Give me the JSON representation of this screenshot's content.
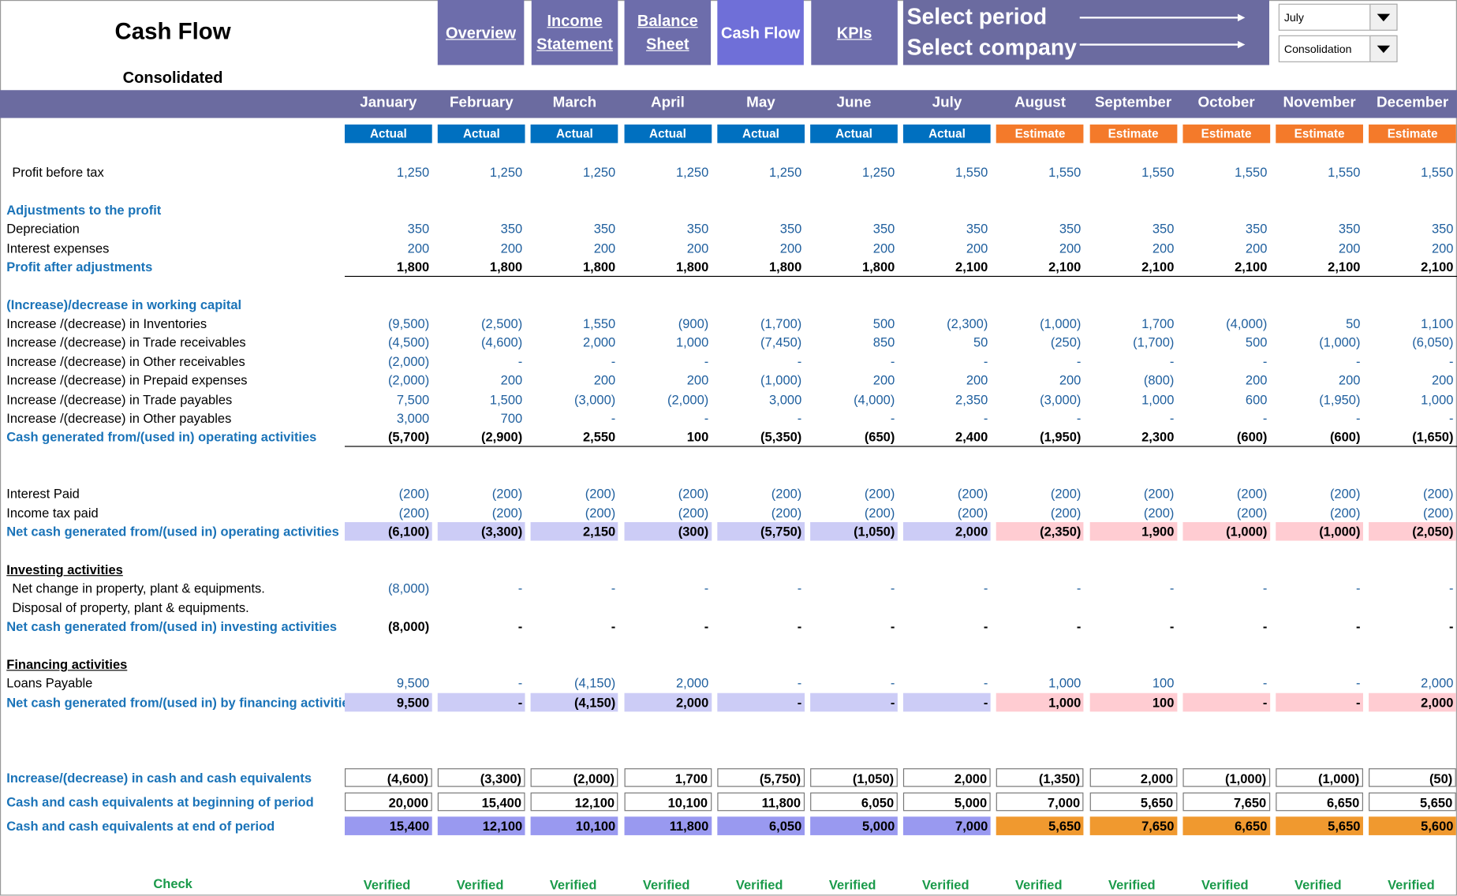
{
  "header": {
    "title": "Cash Flow",
    "subtitle": "Consolidated",
    "nav": [
      "Overview",
      "Income Statement",
      "Balance Sheet",
      "Cash Flow",
      "KPIs"
    ],
    "selectors": [
      {
        "label": "Select period",
        "value": "July"
      },
      {
        "label": "Select company",
        "value": "Consolidation"
      }
    ]
  },
  "months": [
    "January",
    "February",
    "March",
    "April",
    "May",
    "June",
    "July",
    "August",
    "September",
    "October",
    "November",
    "December"
  ],
  "status": [
    "Actual",
    "Actual",
    "Actual",
    "Actual",
    "Actual",
    "Actual",
    "Actual",
    "Estimate",
    "Estimate",
    "Estimate",
    "Estimate",
    "Estimate"
  ],
  "rows": [
    {
      "label": "Profit  before tax",
      "values": [
        "1,250",
        "1,250",
        "1,250",
        "1,250",
        "1,250",
        "1,250",
        "1,550",
        "1,550",
        "1,550",
        "1,550",
        "1,550",
        "1,550"
      ]
    },
    {
      "label": "Adjustments to the profit"
    },
    {
      "label": "Depreciation",
      "values": [
        "350",
        "350",
        "350",
        "350",
        "350",
        "350",
        "350",
        "350",
        "350",
        "350",
        "350",
        "350"
      ]
    },
    {
      "label": "Interest expenses",
      "values": [
        "200",
        "200",
        "200",
        "200",
        "200",
        "200",
        "200",
        "200",
        "200",
        "200",
        "200",
        "200"
      ]
    },
    {
      "label": "Profit after adjustments",
      "values": [
        "1,800",
        "1,800",
        "1,800",
        "1,800",
        "1,800",
        "1,800",
        "2,100",
        "2,100",
        "2,100",
        "2,100",
        "2,100",
        "2,100"
      ]
    },
    {
      "label": "(Increase)/decrease in working capital"
    },
    {
      "label": "Increase /(decrease) in Inventories",
      "values": [
        "(9,500)",
        "(2,500)",
        "1,550",
        "(900)",
        "(1,700)",
        "500",
        "(2,300)",
        "(1,000)",
        "1,700",
        "(4,000)",
        "50",
        "1,100"
      ]
    },
    {
      "label": "Increase /(decrease) in Trade receivables",
      "values": [
        "(4,500)",
        "(4,600)",
        "2,000",
        "1,000",
        "(7,450)",
        "850",
        "50",
        "(250)",
        "(1,700)",
        "500",
        "(1,000)",
        "(6,050)"
      ]
    },
    {
      "label": "Increase /(decrease) in Other receivables",
      "values": [
        "(2,000)",
        "-",
        "-",
        "-",
        "-",
        "-",
        "-",
        "-",
        "-",
        "-",
        "-",
        "-"
      ]
    },
    {
      "label": "Increase /(decrease) in Prepaid expenses",
      "values": [
        "(2,000)",
        "200",
        "200",
        "200",
        "(1,000)",
        "200",
        "200",
        "200",
        "(800)",
        "200",
        "200",
        "200"
      ]
    },
    {
      "label": "Increase /(decrease) in Trade payables",
      "values": [
        "7,500",
        "1,500",
        "(3,000)",
        "(2,000)",
        "3,000",
        "(4,000)",
        "2,350",
        "(3,000)",
        "1,000",
        "600",
        "(1,950)",
        "1,000"
      ]
    },
    {
      "label": "Increase /(decrease) in Other payables",
      "values": [
        "3,000",
        "700",
        "-",
        "-",
        "-",
        "-",
        "-",
        "-",
        "-",
        "-",
        "-",
        "-"
      ]
    },
    {
      "label": "Cash generated from/(used in) operating activities",
      "values": [
        "(5,700)",
        "(2,900)",
        "2,550",
        "100",
        "(5,350)",
        "(650)",
        "2,400",
        "(1,950)",
        "2,300",
        "(600)",
        "(600)",
        "(1,650)"
      ]
    },
    {
      "label": "Interest Paid",
      "values": [
        "(200)",
        "(200)",
        "(200)",
        "(200)",
        "(200)",
        "(200)",
        "(200)",
        "(200)",
        "(200)",
        "(200)",
        "(200)",
        "(200)"
      ]
    },
    {
      "label": "Income tax paid",
      "values": [
        "(200)",
        "(200)",
        "(200)",
        "(200)",
        "(200)",
        "(200)",
        "(200)",
        "(200)",
        "(200)",
        "(200)",
        "(200)",
        "(200)"
      ]
    },
    {
      "label": "Net cash generated from/(used in) operating activities",
      "values": [
        "(6,100)",
        "(3,300)",
        "2,150",
        "(300)",
        "(5,750)",
        "(1,050)",
        "2,000",
        "(2,350)",
        "1,900",
        "(1,000)",
        "(1,000)",
        "(2,050)"
      ]
    },
    {
      "label": "Investing activities"
    },
    {
      "label": "Net change in  property, plant & equipments.",
      "values": [
        "(8,000)",
        "-",
        "-",
        "-",
        "-",
        "-",
        "-",
        "-",
        "-",
        "-",
        "-",
        "-"
      ]
    },
    {
      "label": "Disposal of property, plant & equipments."
    },
    {
      "label": "Net cash generated from/(used in) investing activities",
      "values": [
        "(8,000)",
        "-",
        "-",
        "-",
        "-",
        "-",
        "-",
        "-",
        "-",
        "-",
        "-",
        "-"
      ]
    },
    {
      "label": "Financing activities"
    },
    {
      "label": "Loans Payable",
      "values": [
        "9,500",
        "-",
        "(4,150)",
        "2,000",
        "-",
        "-",
        "-",
        "1,000",
        "100",
        "-",
        "-",
        "2,000"
      ]
    },
    {
      "label": "Net cash generated from/(used in) by financing activities",
      "values": [
        "9,500",
        "-",
        "(4,150)",
        "2,000",
        "-",
        "-",
        "-",
        "1,000",
        "100",
        "-",
        "-",
        "2,000"
      ]
    },
    {
      "label": "Increase/(decrease) in cash and cash equivalents",
      "values": [
        "(4,600)",
        "(3,300)",
        "(2,000)",
        "1,700",
        "(5,750)",
        "(1,050)",
        "2,000",
        "(1,350)",
        "2,000",
        "(1,000)",
        "(1,000)",
        "(50)"
      ]
    },
    {
      "label": "Cash and cash equivalents at beginning of period",
      "values": [
        "20,000",
        "15,400",
        "12,100",
        "10,100",
        "11,800",
        "6,050",
        "5,000",
        "7,000",
        "5,650",
        "7,650",
        "6,650",
        "5,650"
      ]
    },
    {
      "label": "Cash and cash equivalents at end of period",
      "values": [
        "15,400",
        "12,100",
        "10,100",
        "11,800",
        "6,050",
        "5,000",
        "7,000",
        "5,650",
        "7,650",
        "6,650",
        "5,650",
        "5,600"
      ]
    },
    {
      "label": "Check",
      "values": [
        "Verified",
        "Verified",
        "Verified",
        "Verified",
        "Verified",
        "Verified",
        "Verified",
        "Verified",
        "Verified",
        "Verified",
        "Verified",
        "Verified"
      ]
    }
  ]
}
